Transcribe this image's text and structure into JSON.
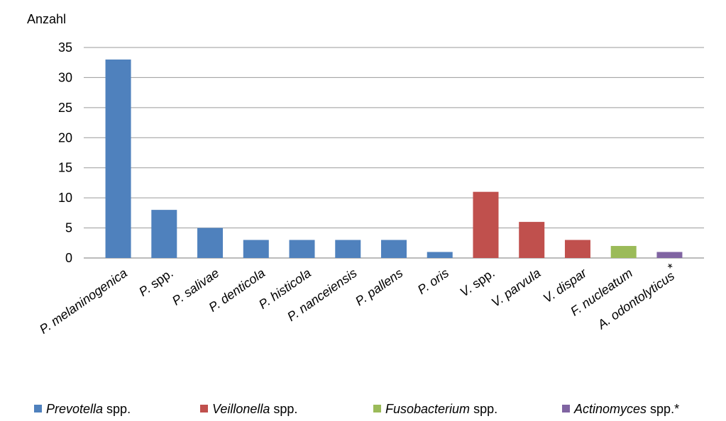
{
  "chart_data": {
    "type": "bar",
    "ylabel": "Anzahl",
    "ylim": [
      0,
      35
    ],
    "yticks": [
      0,
      5,
      10,
      15,
      20,
      25,
      30,
      35
    ],
    "grid": true,
    "legend_position": "bottom",
    "categories": [
      {
        "prefix": "P.",
        "name": "melaninogenica",
        "suffix": "",
        "group": "Prevotella"
      },
      {
        "prefix": "P.",
        "name": "",
        "suffix": "spp.",
        "group": "Prevotella"
      },
      {
        "prefix": "P.",
        "name": "salivae",
        "suffix": "",
        "group": "Prevotella"
      },
      {
        "prefix": "P.",
        "name": "denticola",
        "suffix": "",
        "group": "Prevotella"
      },
      {
        "prefix": "P.",
        "name": "histicola",
        "suffix": "",
        "group": "Prevotella"
      },
      {
        "prefix": "P.",
        "name": "nanceiensis",
        "suffix": "",
        "group": "Prevotella"
      },
      {
        "prefix": "P.",
        "name": "pallens",
        "suffix": "",
        "group": "Prevotella"
      },
      {
        "prefix": "P.",
        "name": "oris",
        "suffix": "",
        "group": "Prevotella"
      },
      {
        "prefix": "V.",
        "name": "",
        "suffix": "spp.",
        "group": "Veillonella"
      },
      {
        "prefix": "V.",
        "name": "parvula",
        "suffix": "",
        "group": "Veillonella"
      },
      {
        "prefix": "V.",
        "name": "dispar",
        "suffix": "",
        "group": "Veillonella"
      },
      {
        "prefix": "F.",
        "name": "nucleatum",
        "suffix": "",
        "group": "Fusobacterium"
      },
      {
        "prefix": "A.",
        "name": "odontolyticus",
        "suffix": "*",
        "group": "Actinomyces"
      }
    ],
    "values": [
      33,
      8,
      5,
      3,
      3,
      3,
      3,
      1,
      11,
      6,
      3,
      2,
      1
    ],
    "groups": [
      {
        "key": "Prevotella",
        "italic": "Prevotella",
        "rest": " spp.",
        "color": "#4f81bd"
      },
      {
        "key": "Veillonella",
        "italic": "Veillonella",
        "rest": " spp.",
        "color": "#c0504d"
      },
      {
        "key": "Fusobacterium",
        "italic": "Fusobacterium",
        "rest": " spp.",
        "color": "#9bbb59"
      },
      {
        "key": "Actinomyces",
        "italic": "Actinomyces",
        "rest": " spp.*",
        "color": "#8064a2"
      }
    ]
  }
}
